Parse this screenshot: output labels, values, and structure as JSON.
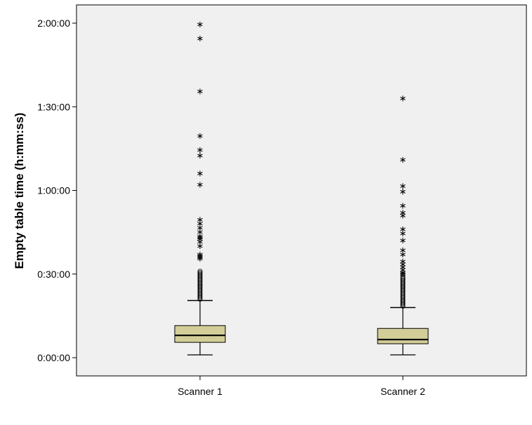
{
  "chart_data": {
    "type": "boxplot",
    "title": "",
    "xlabel": "",
    "ylabel": "Empty table time (h:mm:ss)",
    "y_unit": "minutes",
    "ylim": [
      -3,
      124
    ],
    "yticks": [
      {
        "value": 0,
        "label": "0:00:00"
      },
      {
        "value": 30,
        "label": "0:30:00"
      },
      {
        "value": 60,
        "label": "1:00:00"
      },
      {
        "value": 90,
        "label": "1:30:00"
      },
      {
        "value": 120,
        "label": "2:00:00"
      }
    ],
    "grid": false,
    "plot_background": "#f0f0f0",
    "box_color": "#d3ce97",
    "categories": [
      "Scanner 1",
      "Scanner 2"
    ],
    "boxes": [
      {
        "category": "Scanner 1",
        "whisker_low": 1,
        "q1": 5.5,
        "median": 8,
        "q3": 11.5,
        "whisker_high": 20.5,
        "outliers_circle": [
          21,
          21.5,
          22,
          22.5,
          23,
          23.5,
          24,
          24.5,
          25,
          25.5,
          26,
          26.5,
          27,
          27.5,
          28,
          28.5,
          29,
          29.5,
          30,
          30.5,
          31
        ],
        "outliers_star": [
          36,
          36.5,
          37,
          37.5,
          40.5,
          42,
          43,
          43.5,
          44,
          45.5,
          47,
          48.5,
          50,
          62.5,
          66.5,
          73,
          75,
          80,
          96,
          115,
          120
        ]
      },
      {
        "category": "Scanner 2",
        "whisker_low": 1,
        "q1": 5,
        "median": 6.5,
        "q3": 10.5,
        "whisker_high": 18,
        "outliers_circle": [
          18.5,
          19,
          19.5,
          20,
          20.5,
          21,
          21.5,
          22,
          22.5,
          23,
          23.5,
          24,
          24.5,
          25,
          25.5,
          26,
          26.5,
          27,
          27.5,
          28,
          28.5,
          29,
          30
        ],
        "outliers_star": [
          30.5,
          31,
          32,
          33,
          34,
          35,
          37.5,
          39,
          42.5,
          45,
          46.5,
          51.5,
          52.5,
          55,
          60,
          62,
          71.5,
          93.5
        ]
      }
    ]
  }
}
